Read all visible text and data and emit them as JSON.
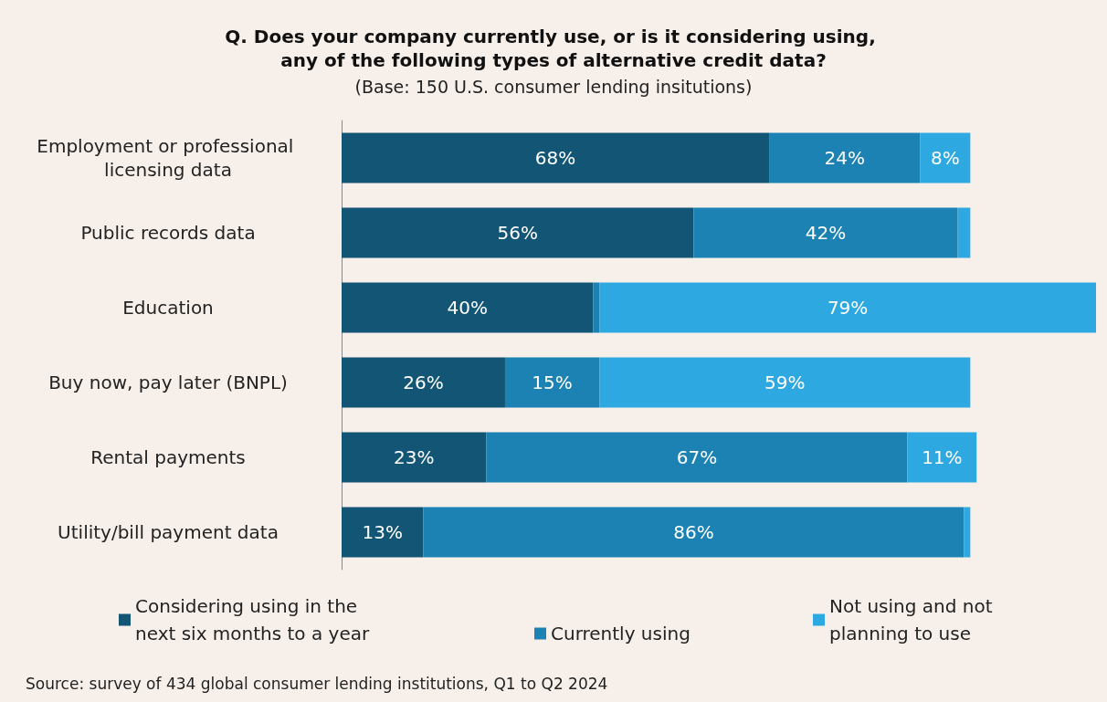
{
  "chart_data": {
    "type": "bar",
    "orientation": "horizontal",
    "stacked": true,
    "tick_labels": "y",
    "title": "Q. Does your company currently use, or is it considering using, any of the following types of alternative credit data?",
    "subtitle": "(Base: 150 U.S. consumer lending insitutions)",
    "categories": [
      "Employment or professional licensing data",
      "Public records data",
      "Education",
      "Buy now, pay later (BNPL)",
      "Rental payments",
      "Utility/bill payment data"
    ],
    "series": [
      {
        "name": "Considering using in the next six months to a year",
        "color": "#135574",
        "values": [
          68,
          56,
          40,
          26,
          23,
          13
        ],
        "value_labels": [
          "68%",
          "56%",
          "40%",
          "26%",
          "23%",
          "13%"
        ]
      },
      {
        "name": "Currently using",
        "color": "#1b82b3",
        "values": [
          24,
          42,
          1,
          15,
          67,
          86
        ],
        "value_labels": [
          "24%",
          "42%",
          null,
          "15%",
          "67%",
          "86%"
        ]
      },
      {
        "name": "Not using and not planning to use",
        "color": "#2ea8e0",
        "values": [
          8,
          2,
          79,
          59,
          11,
          1
        ],
        "value_labels": [
          "8%",
          null,
          "79%",
          "59%",
          "11%",
          null
        ]
      }
    ],
    "legend": "bottom",
    "annotations": [
      "Source: survey of 434 global consumer lending institutions, Q1 to Q2 2024"
    ]
  }
}
